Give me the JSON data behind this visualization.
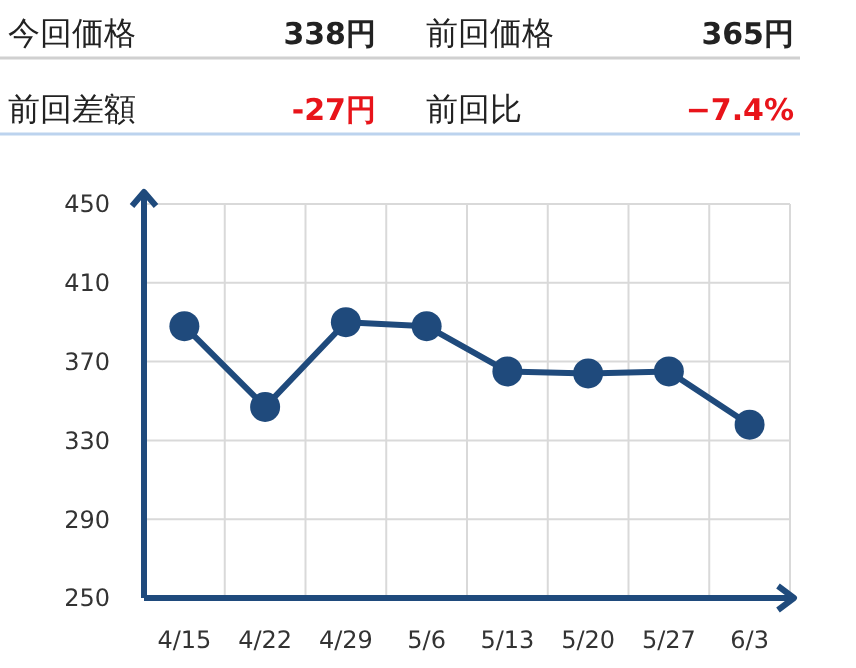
{
  "chart_data": [
    {
      "type": "other",
      "annotations": [
        "今回価格",
        "338円",
        "前回価格",
        "365円",
        "前回差額",
        "-27円",
        "前回比",
        "−7.4%"
      ]
    },
    {
      "type": "line",
      "categories": [
        "4/15",
        "4/22",
        "4/29",
        "5/6",
        "5/13",
        "5/20",
        "5/27",
        "6/3"
      ],
      "values": [
        388,
        347,
        390,
        388,
        365,
        364,
        365,
        338
      ],
      "color": "#1f4a7c",
      "ylim": [
        250,
        450
      ],
      "yticks": [
        250,
        290,
        330,
        370,
        410,
        450
      ],
      "grid": true,
      "marker": "circle"
    }
  ]
}
